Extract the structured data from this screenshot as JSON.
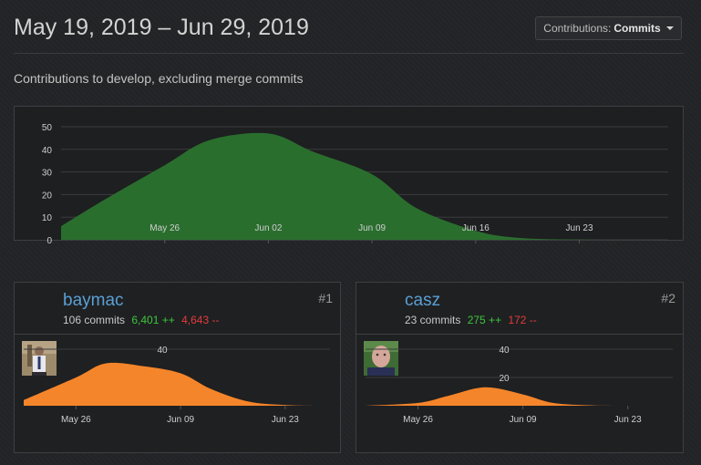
{
  "header": {
    "date_range": "May 19, 2019 – Jun 29, 2019",
    "type_button_prefix": "Contributions:",
    "type_button_value": "Commits"
  },
  "subtitle": "Contributions to develop, excluding merge commits",
  "colors": {
    "main_fill": "#2a6e2e",
    "user_fill": "#f5852a",
    "username": "#5a9fd4",
    "additions": "#3cc63c",
    "deletions": "#e33b3b"
  },
  "chart_data": [
    {
      "type": "area",
      "y_ticks": [
        "0",
        "10",
        "20",
        "30",
        "40",
        "50"
      ],
      "ylim": [
        0,
        50
      ],
      "x_ticks": [
        "May 26",
        "Jun 02",
        "Jun 09",
        "Jun 16",
        "Jun 23"
      ],
      "x": [
        "May 19",
        "May 22",
        "May 26",
        "May 29",
        "Jun 02",
        "Jun 05",
        "Jun 09",
        "Jun 12",
        "Jun 16",
        "Jun 19",
        "Jun 23",
        "Jun 26",
        "Jun 29"
      ],
      "values": [
        6,
        18,
        33,
        44,
        47,
        39,
        29,
        14,
        4,
        0.8,
        0.1,
        0,
        0
      ]
    },
    {
      "type": "area",
      "series": [
        {
          "name": "baymac",
          "values": [
            4,
            20,
            30,
            28,
            23,
            12,
            3,
            0.5,
            0
          ]
        }
      ],
      "x": [
        "May 19",
        "May 26",
        "May 30",
        "Jun 04",
        "Jun 09",
        "Jun 13",
        "Jun 18",
        "Jun 23",
        "Jun 29"
      ],
      "x_ticks": [
        "May 26",
        "Jun 09",
        "Jun 23"
      ],
      "y_ticks": [
        "40"
      ],
      "ylim": [
        0,
        40
      ]
    },
    {
      "type": "area",
      "series": [
        {
          "name": "casz",
          "values": [
            0,
            2,
            7,
            13,
            8,
            2,
            0.3,
            0,
            0
          ]
        }
      ],
      "x": [
        "May 19",
        "May 26",
        "May 30",
        "Jun 04",
        "Jun 09",
        "Jun 13",
        "Jun 18",
        "Jun 23",
        "Jun 29"
      ],
      "x_ticks": [
        "May 26",
        "Jun 09",
        "Jun 23"
      ],
      "y_ticks": [
        "40",
        "20"
      ],
      "ylim": [
        0,
        40
      ]
    }
  ],
  "contributors": [
    {
      "name": "baymac",
      "commits": "106 commits",
      "additions": "6,401 ++",
      "deletions": "4,643 --",
      "rank": "#1"
    },
    {
      "name": "casz",
      "commits": "23 commits",
      "additions": "275 ++",
      "deletions": "172 --",
      "rank": "#2"
    }
  ]
}
